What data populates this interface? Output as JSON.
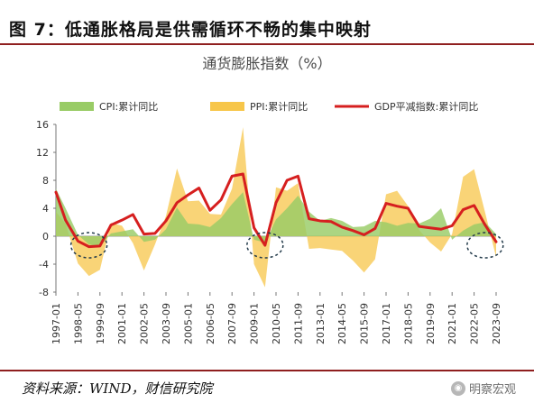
{
  "header": {
    "figure_title": "图 7：低通胀格局是供需循环不畅的集中映射"
  },
  "chart_data": {
    "type": "line",
    "title": "通货膨胀指数（%）",
    "xlabel": "",
    "ylabel": "",
    "ylim": [
      -8,
      16
    ],
    "yticks": [
      16,
      12,
      8,
      4,
      0,
      -4,
      -8
    ],
    "x_tick_labels": [
      "1997-01",
      "1998-05",
      "1999-09",
      "2001-01",
      "2002-05",
      "2003-09",
      "2005-01",
      "2006-05",
      "2007-09",
      "2009-01",
      "2010-05",
      "2011-09",
      "2013-01",
      "2014-05",
      "2015-09",
      "2017-01",
      "2018-05",
      "2019-09",
      "2021-01",
      "2022-05",
      "2023-09"
    ],
    "x": [
      "1997-01",
      "1997-08",
      "1998-05",
      "1999-01",
      "1999-09",
      "2000-05",
      "2001-01",
      "2001-09",
      "2002-05",
      "2003-01",
      "2003-09",
      "2004-05",
      "2005-01",
      "2005-09",
      "2006-05",
      "2007-01",
      "2007-09",
      "2008-05",
      "2009-01",
      "2009-09",
      "2010-05",
      "2011-01",
      "2011-09",
      "2012-05",
      "2013-01",
      "2013-09",
      "2014-05",
      "2015-01",
      "2015-09",
      "2016-05",
      "2017-01",
      "2017-09",
      "2018-05",
      "2019-01",
      "2019-09",
      "2020-05",
      "2021-01",
      "2021-09",
      "2022-05",
      "2023-01",
      "2023-09"
    ],
    "series": [
      {
        "name": "CPI:累计同比",
        "render": "area",
        "color": "#99cc66",
        "values": [
          6.8,
          4.0,
          0.2,
          -1.2,
          -1.5,
          0.4,
          0.7,
          1.0,
          -0.8,
          -0.5,
          1.0,
          4.1,
          1.8,
          1.7,
          1.3,
          2.6,
          4.6,
          6.3,
          -0.5,
          -0.9,
          2.4,
          4.0,
          5.8,
          3.5,
          2.2,
          2.6,
          2.2,
          1.3,
          1.4,
          2.2,
          2.0,
          1.5,
          1.9,
          1.8,
          2.5,
          4.0,
          -0.5,
          0.8,
          1.7,
          2.0,
          0.3
        ]
      },
      {
        "name": "PPI:累计同比",
        "render": "area",
        "color": "#f7c64a",
        "values": [
          3.5,
          1.8,
          -3.9,
          -5.7,
          -4.8,
          1.9,
          1.5,
          -1.0,
          -4.9,
          -1.2,
          2.9,
          9.7,
          5.0,
          5.1,
          3.2,
          3.1,
          6.8,
          15.6,
          -4.0,
          -7.3,
          7.0,
          6.5,
          7.6,
          -1.8,
          -1.7,
          -1.9,
          -2.1,
          -3.5,
          -5.2,
          -3.3,
          6.0,
          6.5,
          4.3,
          0.9,
          -0.9,
          -2.2,
          0.3,
          8.5,
          9.6,
          3.4,
          -3.0
        ]
      },
      {
        "name": "GDP平减指数:累计同比",
        "render": "line",
        "color": "#d61f1f",
        "values": [
          6.3,
          2.3,
          -0.7,
          -1.5,
          -1.4,
          1.6,
          2.3,
          3.1,
          0.3,
          0.4,
          2.2,
          4.8,
          5.9,
          6.9,
          3.7,
          5.2,
          8.6,
          8.9,
          1.2,
          -1.3,
          4.8,
          8.0,
          8.6,
          2.5,
          2.2,
          2.1,
          1.3,
          0.8,
          0.2,
          1.1,
          4.7,
          4.3,
          4.0,
          1.4,
          1.2,
          1.0,
          1.5,
          3.8,
          4.4,
          1.6,
          -0.8
        ]
      }
    ],
    "highlight_ranges": [
      {
        "start": "1998-05",
        "end": "1999-09"
      },
      {
        "start": "2009-01",
        "end": "2010-05"
      },
      {
        "start": "2022-05",
        "end": "2023-09"
      }
    ],
    "legend_position": "top",
    "grid": false
  },
  "footer": {
    "source": "资料来源：WIND，财信研究院",
    "watermark_text": "明察宏观",
    "watermark_icon": "wechat-icon"
  }
}
